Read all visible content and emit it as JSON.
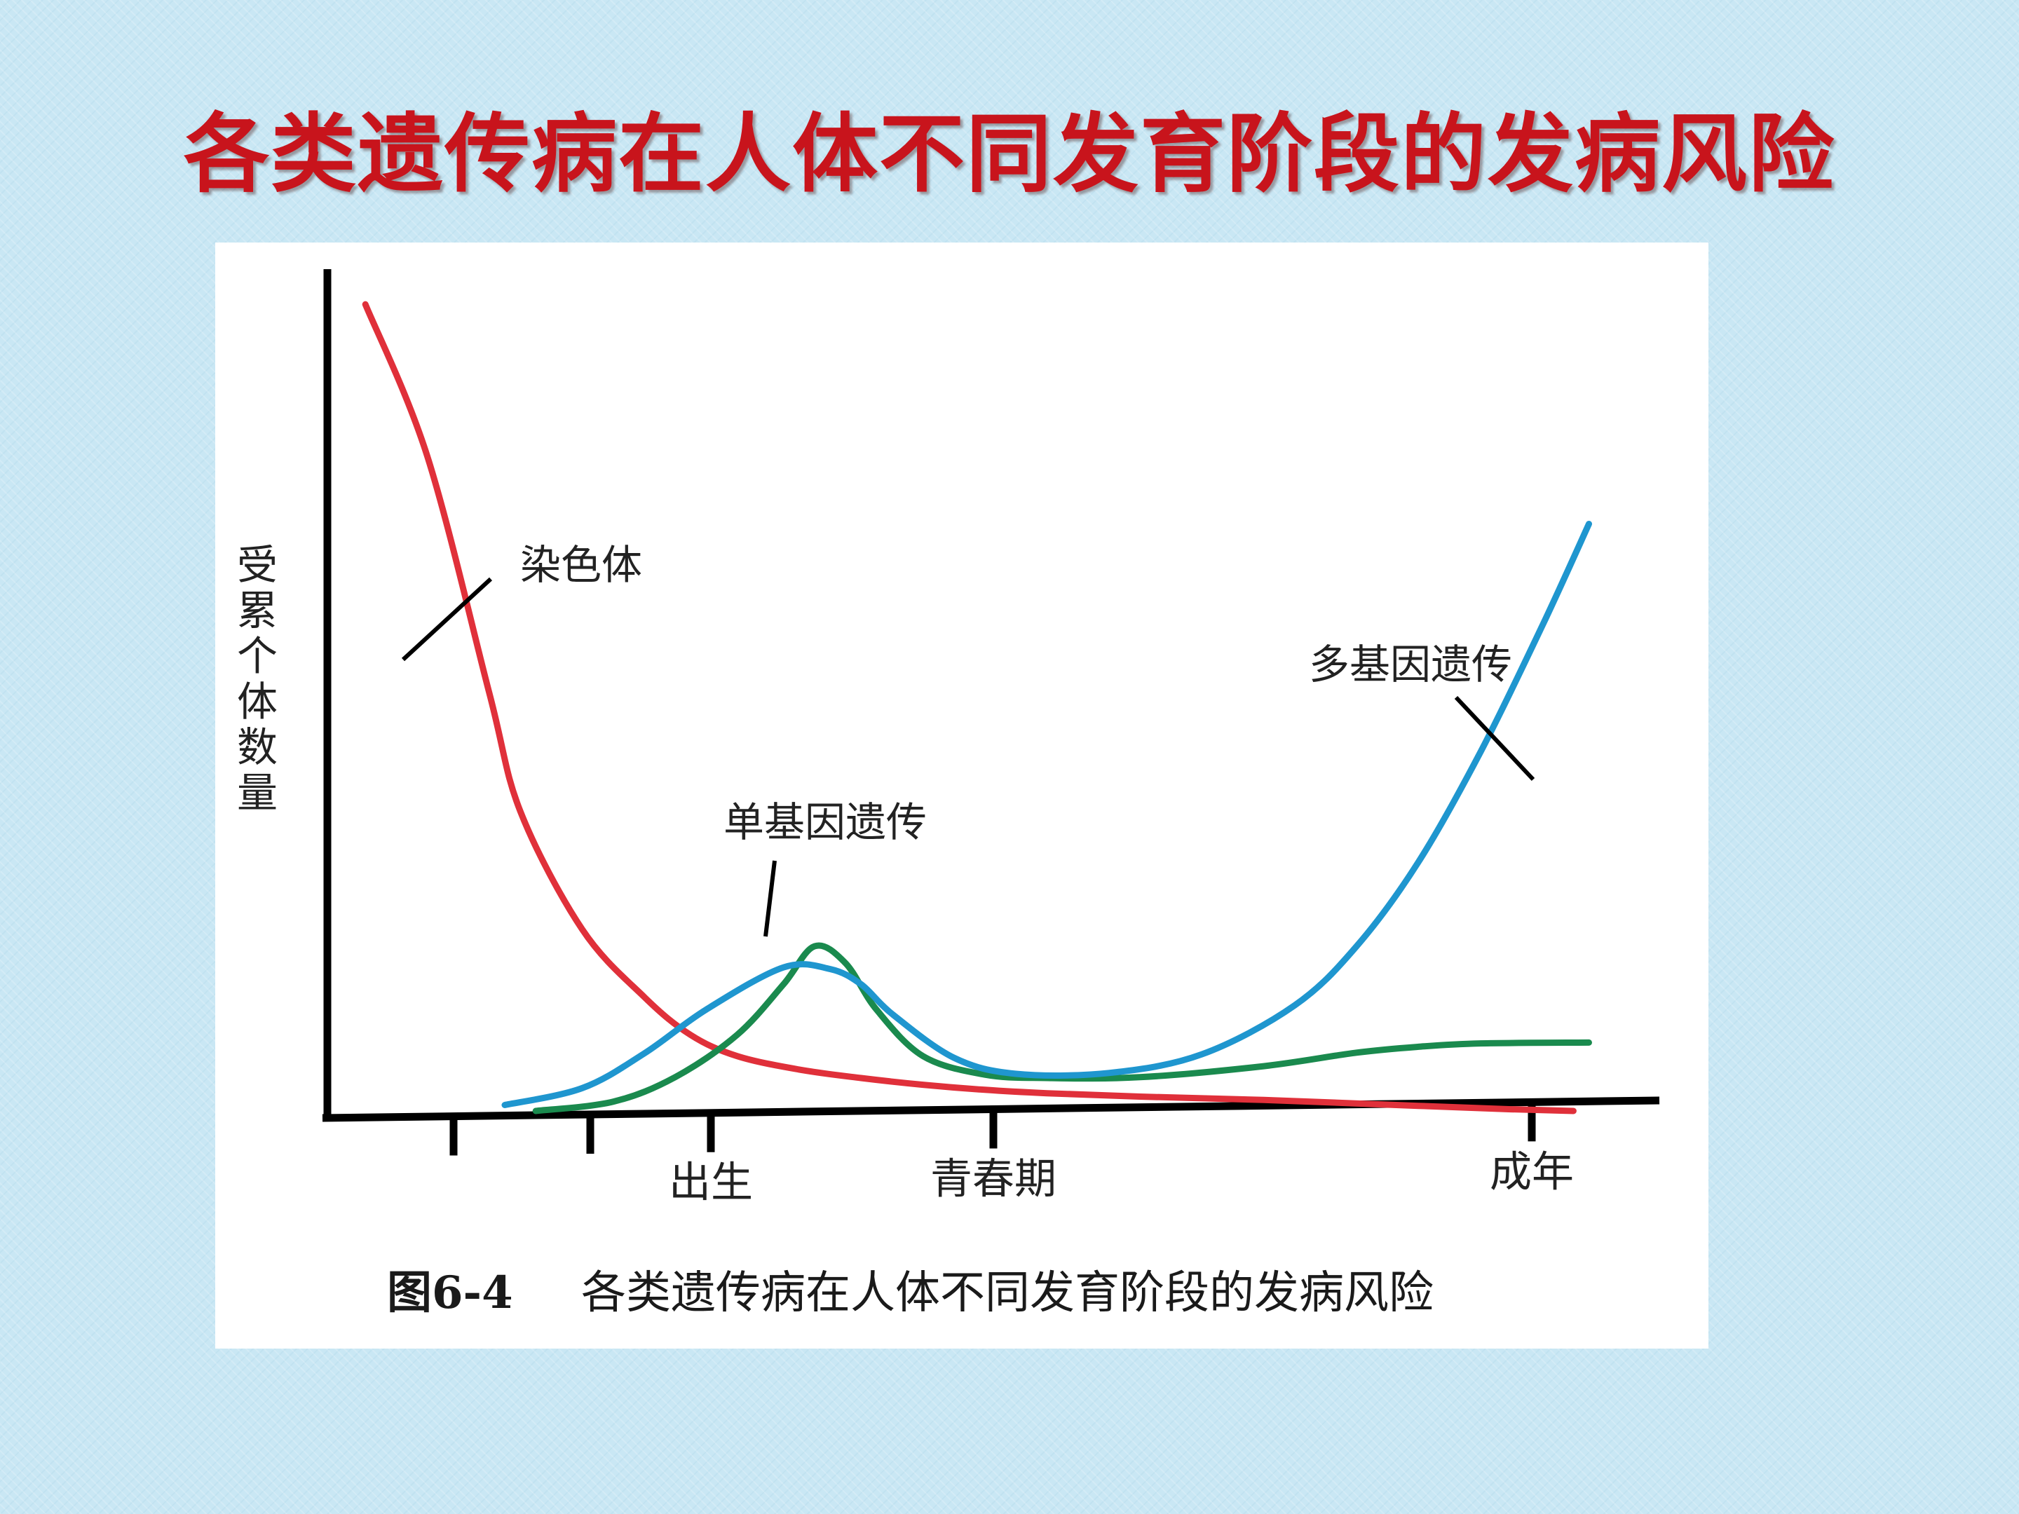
{
  "slide": {
    "title": "各类遗传病在人体不同发育阶段的发病风险",
    "title_color": "#c8141c",
    "background_color": "#c9e7f4"
  },
  "figure": {
    "caption_number": "图6-4",
    "caption_text": "各类遗传病在人体不同发育阶段的发病风险"
  },
  "chart_data": {
    "type": "line",
    "title": "",
    "xlabel": "",
    "ylabel": "受累个体数量",
    "x_ticks": [
      "",
      "",
      "出生",
      "青春期",
      "成年"
    ],
    "series": [
      {
        "name": "染色体",
        "color": "#e0303a",
        "x": [
          0.1,
          0.3,
          0.5,
          0.6,
          0.8,
          1.0,
          1.15,
          1.3,
          1.5,
          1.7,
          1.9,
          2.1,
          2.3,
          2.6,
          3.0,
          3.5,
          3.8,
          4.0
        ],
        "y": [
          96,
          78,
          50,
          36,
          22,
          14,
          9.5,
          7,
          5.4,
          4.4,
          3.6,
          3.0,
          2.6,
          2.2,
          1.8,
          1.1,
          0.7,
          0.5
        ]
      },
      {
        "name": "单基因遗传",
        "color": "#1a8a4e",
        "x": [
          0.65,
          0.9,
          1.1,
          1.3,
          1.45,
          1.55,
          1.65,
          1.75,
          1.9,
          2.1,
          2.3,
          2.6,
          3.0,
          3.3,
          3.5,
          3.7,
          4.05
        ],
        "y": [
          0.5,
          1.6,
          4.5,
          9.5,
          15.5,
          20,
          18,
          12.5,
          7,
          4.8,
          4.4,
          4.5,
          5.8,
          7.4,
          8.1,
          8.5,
          8.6
        ]
      },
      {
        "name": "多基因遗传",
        "color": "#1f96cf",
        "x": [
          0.55,
          0.8,
          1.0,
          1.2,
          1.45,
          1.6,
          1.7,
          1.8,
          2.0,
          2.2,
          2.5,
          2.8,
          3.1,
          3.3,
          3.5,
          3.7,
          3.9,
          4.05
        ],
        "y": [
          1.2,
          3.2,
          7.3,
          12.5,
          17.5,
          17.3,
          15.5,
          12,
          6.8,
          4.9,
          5.0,
          7.2,
          13,
          20,
          30,
          43,
          58,
          70
        ]
      }
    ],
    "annotations": [
      "染色体",
      "单基因遗传",
      "多基因遗传"
    ],
    "xlim": [
      0,
      4.3
    ],
    "ylim": [
      0,
      100
    ],
    "grid": false,
    "legend": "none"
  }
}
